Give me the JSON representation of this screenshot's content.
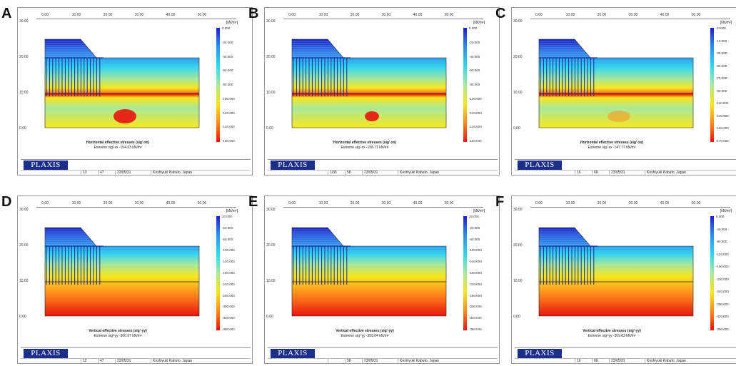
{
  "axes": {
    "x_ticks": [
      "0.00",
      "10.00",
      "20.00",
      "30.00",
      "40.00",
      "50.00"
    ],
    "y_ticks": [
      "30.00",
      "20.00",
      "10.00",
      "0.00"
    ]
  },
  "logo": "PLAXIS",
  "author": "Koshiyuki Kabuto, Japan",
  "date": "23/05/31",
  "unit": "[kN/m²]",
  "colors": {
    "hi_blue": "#1e20c8",
    "red": "#e8140e",
    "orange": "#ff8a1c",
    "yellow": "#f8e71c",
    "cyan": "#35d6ee",
    "green": "#a8e89a",
    "mesh": "#1a2a9a"
  },
  "panels": [
    {
      "label": "A",
      "title": "Horizontal effective stresses (sig'-xx)",
      "extreme": "Extreme sig'-xx -154.23 kN/m²",
      "f1": "13",
      "f2": "47",
      "legend": [
        "0.000",
        "-20.000",
        "-40.000",
        "-60.000",
        "-80.000",
        "-100.000",
        "-120.000",
        "-140.000",
        "-160.000"
      ]
    },
    {
      "label": "B",
      "title": "Horizontal effective stresses (sig'-xx)",
      "extreme": "Extreme sig'-xx -158.71 kN/m²",
      "f1": "1/35",
      "f2": "58",
      "legend": [
        "0.000",
        "-20.000",
        "-40.000",
        "-60.000",
        "-80.000",
        "-100.000",
        "-120.000",
        "-140.000",
        "-160.000"
      ]
    },
    {
      "label": "C",
      "title": "Horizontal effective stresses (sig'-xx)",
      "extreme": "Extreme sig'-xx -147.77 kN/m²",
      "f1": "16",
      "f2": "68",
      "legend": [
        "10.000",
        "-10.000",
        "-30.000",
        "-50.000",
        "-70.000",
        "-90.000",
        "-110.000",
        "-130.000",
        "-150.000",
        "-170.000"
      ]
    },
    {
      "label": "D",
      "title": "Vertical effective stresses (sig'-yy)",
      "extreme": "Extreme sig'-yy -360.97 kN/m²",
      "f1": "12",
      "f2": "47",
      "legend": [
        "20.000",
        "-20.000",
        "-60.000",
        "-100.000",
        "-140.000",
        "-180.000",
        "-220.000",
        "-260.000",
        "-300.000",
        "-340.000",
        "-380.000"
      ]
    },
    {
      "label": "E",
      "title": "Vertical effective stresses (sig'-yy)",
      "extreme": "Extreme sig'-yy -359.64 kN/m²",
      "f1": "",
      "f2": "58",
      "legend": [
        "20.000",
        "-20.000",
        "-60.000",
        "-100.000",
        "-140.000",
        "-180.000",
        "-220.000",
        "-260.000",
        "-300.000",
        "-340.000",
        "-380.000"
      ]
    },
    {
      "label": "F",
      "title": "Vertical effective stresses (sig'-yy)",
      "extreme": "Extreme sig'-yy -359.63 kN/m²",
      "f1": "16",
      "f2": "68",
      "legend": [
        "0.000",
        "-40.000",
        "-80.000",
        "-120.000",
        "-160.000",
        "-200.000",
        "-240.000",
        "-280.000",
        "-320.000",
        "-360.000"
      ]
    }
  ]
}
